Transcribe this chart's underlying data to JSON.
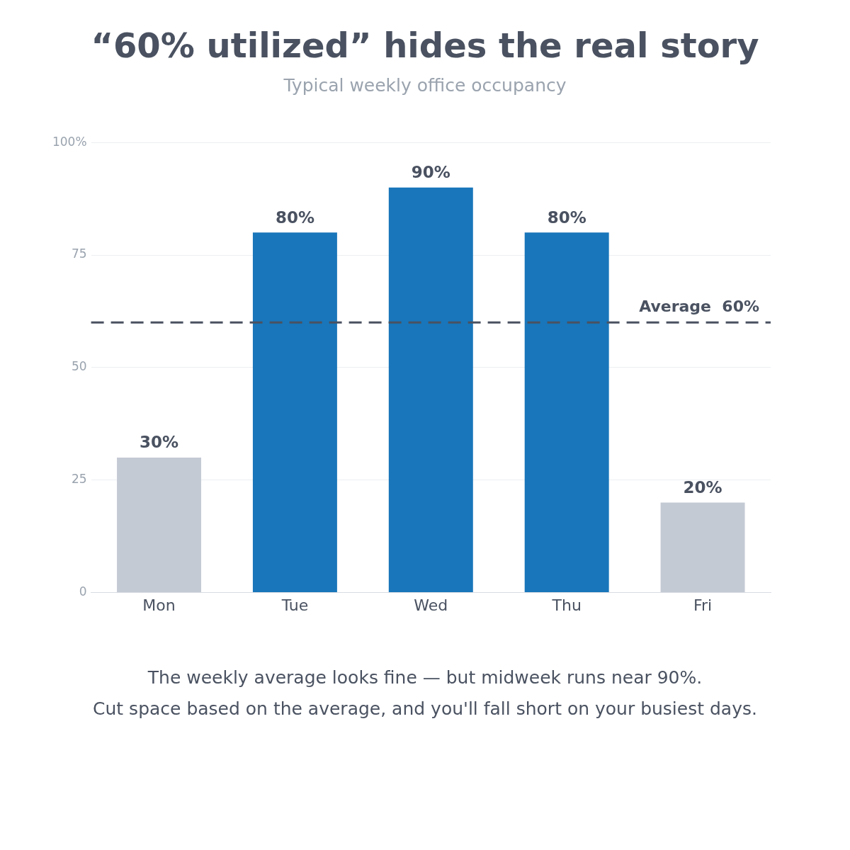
{
  "chart_data": {
    "type": "bar",
    "title": "“60% utilized” hides the real story",
    "subtitle": "Typical weekly office occupancy",
    "categories": [
      "Mon",
      "Tue",
      "Wed",
      "Thu",
      "Fri"
    ],
    "values": [
      30,
      80,
      90,
      80,
      20
    ],
    "colors": [
      "#c4cad4",
      "#1976ba",
      "#1976ba",
      "#1976ba",
      "#c4cad4"
    ],
    "value_labels": [
      "30%",
      "80%",
      "90%",
      "80%",
      "20%"
    ],
    "ylim": [
      0,
      100
    ],
    "yticks": [
      0,
      25,
      50,
      75,
      {
        "value": 100,
        "label": "100%"
      }
    ],
    "grid": "y",
    "legend": false,
    "ref_lines": [
      {
        "axis": "y",
        "value": 60,
        "label": "Average  60%",
        "color": "#4a5261",
        "line_style": "dashed"
      }
    ],
    "annotations": [
      "The weekly average looks fine — but midweek runs near 90%.",
      "Cut space based on the average, and you'll fall short on your busiest days."
    ]
  }
}
